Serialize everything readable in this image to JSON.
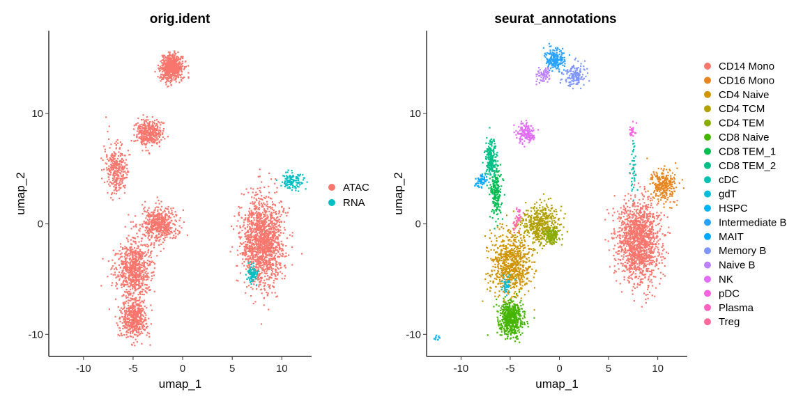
{
  "chart_data": [
    {
      "type": "scatter",
      "title": "orig.ident",
      "xlabel": "umap_1",
      "ylabel": "umap_2",
      "xlim": [
        -13.5,
        13
      ],
      "ylim": [
        -12,
        17.5
      ],
      "xticks": [
        -10,
        -5,
        0,
        5,
        10
      ],
      "yticks": [
        -10,
        0,
        10
      ],
      "grid": false,
      "legend": {
        "position": "right",
        "entries": [
          {
            "name": "ATAC",
            "color": "#F8766D"
          },
          {
            "name": "RNA",
            "color": "#00BFC4"
          }
        ]
      },
      "clusters": [
        {
          "name": "ATAC",
          "x": -1.2,
          "y": 14.2
        },
        {
          "name": "ATAC",
          "x": -3.5,
          "y": 8.3
        },
        {
          "name": "ATAC",
          "x": -6.8,
          "y": 5.0
        },
        {
          "name": "ATAC",
          "x": -2.5,
          "y": 0.0
        },
        {
          "name": "ATAC",
          "x": -5.0,
          "y": -4.0
        },
        {
          "name": "ATAC",
          "x": -5.0,
          "y": -8.5
        },
        {
          "name": "ATAC",
          "x": 8.0,
          "y": -1.5
        },
        {
          "name": "RNA",
          "x": 11.0,
          "y": 4.0
        },
        {
          "name": "RNA",
          "x": 7.0,
          "y": -4.5
        }
      ]
    },
    {
      "type": "scatter",
      "title": "seurat_annotations",
      "xlabel": "umap_1",
      "ylabel": "umap_2",
      "xlim": [
        -13.5,
        13
      ],
      "ylim": [
        -12,
        17.5
      ],
      "xticks": [
        -10,
        -5,
        0,
        5,
        10
      ],
      "yticks": [
        -10,
        0,
        10
      ],
      "grid": false,
      "legend": {
        "position": "right",
        "entries": [
          {
            "name": "CD14 Mono",
            "color": "#F8766D"
          },
          {
            "name": "CD16 Mono",
            "color": "#E7851E"
          },
          {
            "name": "CD4 Naive",
            "color": "#D09400"
          },
          {
            "name": "CD4 TCM",
            "color": "#B2A100"
          },
          {
            "name": "CD4 TEM",
            "color": "#89AC00"
          },
          {
            "name": "CD8 Naive",
            "color": "#45B500"
          },
          {
            "name": "CD8 TEM_1",
            "color": "#00BC51"
          },
          {
            "name": "CD8 TEM_2",
            "color": "#00C087"
          },
          {
            "name": "cDC",
            "color": "#00C0B2"
          },
          {
            "name": "gdT",
            "color": "#00BCD6"
          },
          {
            "name": "HSPC",
            "color": "#00B3F2"
          },
          {
            "name": "Intermediate B",
            "color": "#29A3FF"
          },
          {
            "name": "MAIT",
            "color": "#00A9FF"
          },
          {
            "name": "Memory B",
            "color": "#7F96FF"
          },
          {
            "name": "Naive B",
            "color": "#BC81FF"
          },
          {
            "name": "NK",
            "color": "#E26EF7"
          },
          {
            "name": "pDC",
            "color": "#F863DF"
          },
          {
            "name": "Plasma",
            "color": "#FF62BF"
          },
          {
            "name": "Treg",
            "color": "#FF6A9A"
          }
        ]
      },
      "clusters": [
        {
          "name": "CD14 Mono",
          "x": 8.0,
          "y": -1.5
        },
        {
          "name": "CD16 Mono",
          "x": 10.5,
          "y": 3.5
        },
        {
          "name": "CD4 Naive",
          "x": -5.0,
          "y": -3.5
        },
        {
          "name": "CD4 TCM",
          "x": -2.0,
          "y": 0.0
        },
        {
          "name": "CD4 TEM",
          "x": -0.8,
          "y": -1.0
        },
        {
          "name": "CD8 Naive",
          "x": -5.0,
          "y": -8.5
        },
        {
          "name": "CD8 TEM_1",
          "x": -6.5,
          "y": 3.0
        },
        {
          "name": "CD8 TEM_2",
          "x": -7.0,
          "y": 6.0
        },
        {
          "name": "cDC",
          "x": 7.5,
          "y": 5.0
        },
        {
          "name": "gdT",
          "x": -5.5,
          "y": -5.5
        },
        {
          "name": "HSPC",
          "x": -12.5,
          "y": -10.3
        },
        {
          "name": "Intermediate B",
          "x": -0.5,
          "y": 15.0
        },
        {
          "name": "MAIT",
          "x": -8.0,
          "y": 4.0
        },
        {
          "name": "Memory B",
          "x": 1.5,
          "y": 13.5
        },
        {
          "name": "Naive B",
          "x": -1.8,
          "y": 13.5
        },
        {
          "name": "NK",
          "x": -3.5,
          "y": 8.3
        },
        {
          "name": "pDC",
          "x": 7.3,
          "y": 8.5
        },
        {
          "name": "Plasma",
          "x": -4.2,
          "y": 1.0
        },
        {
          "name": "Treg",
          "x": -4.5,
          "y": 0.0
        }
      ]
    }
  ]
}
